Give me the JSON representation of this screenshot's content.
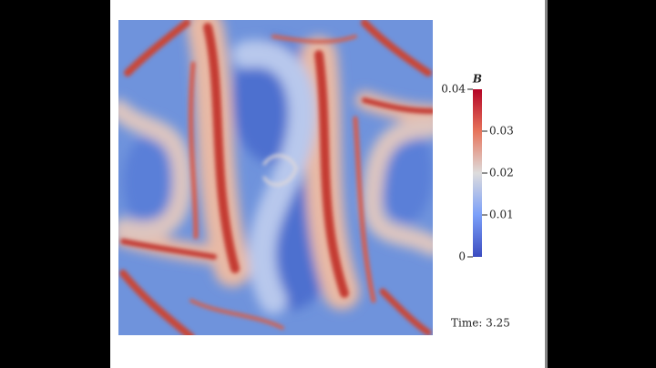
{
  "colorbar": {
    "title": "B",
    "ticks": [
      "0.04",
      "0.03",
      "0.02",
      "0.01",
      "0"
    ]
  },
  "time_label": "Time: 3.25"
}
